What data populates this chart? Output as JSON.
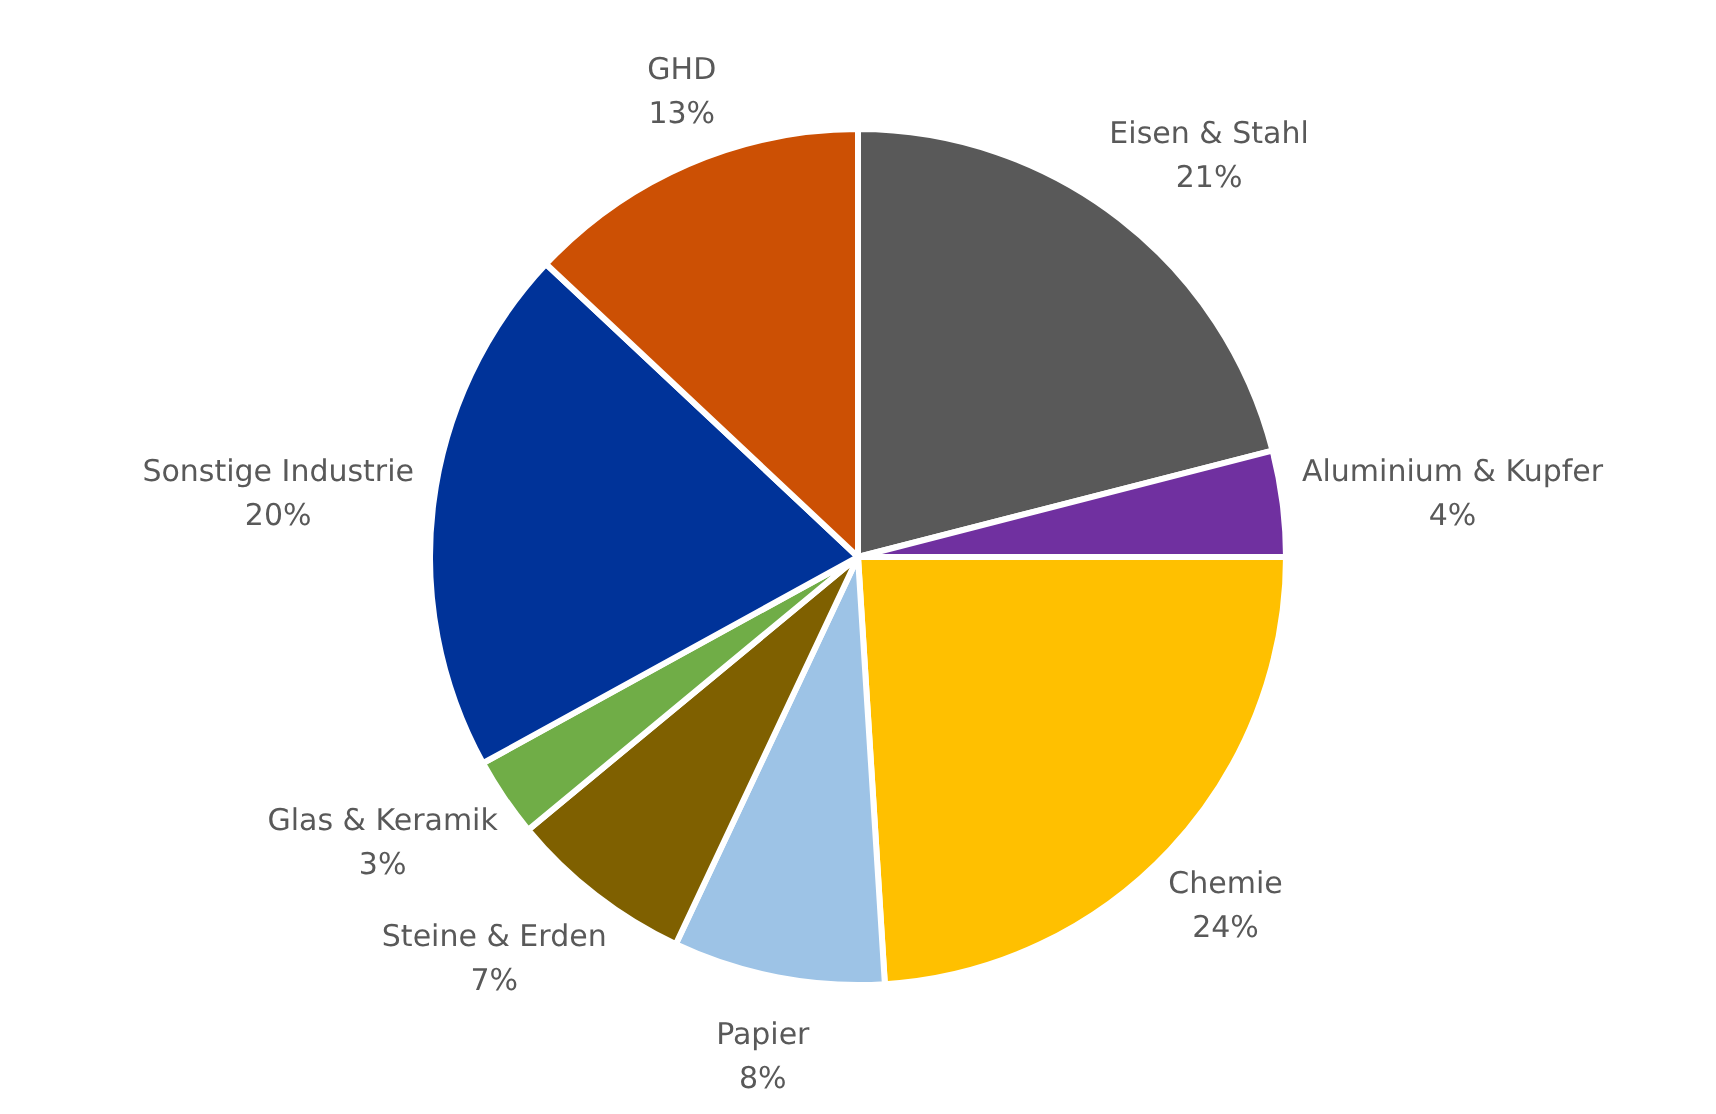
{
  "chart_data": {
    "type": "pie",
    "categories": [
      "Eisen & Stahl",
      "Aluminium & Kupfer",
      "Chemie",
      "Papier",
      "Steine & Erden",
      "Glas & Keramik",
      "Sonstige Industrie",
      "GHD"
    ],
    "values": [
      21,
      4,
      24,
      8,
      7,
      3,
      20,
      13
    ],
    "colors": [
      "#595959",
      "#7030a0",
      "#ffc000",
      "#9dc3e6",
      "#7f6000",
      "#70ad47",
      "#003399",
      "#cc5004"
    ],
    "value_labels": [
      "21%",
      "4%",
      "24%",
      "8%",
      "7%",
      "3%",
      "20%",
      "13%"
    ],
    "legend": false
  }
}
